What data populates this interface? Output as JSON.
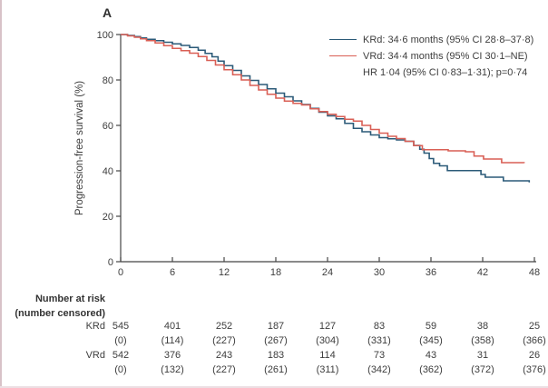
{
  "panel_label": "A",
  "colors": {
    "krd_blue": "#2b5a78",
    "vrd_red": "#d95f55",
    "axis": "#454545",
    "text": "#3d3d3d",
    "edge_left": "#d8c2c8",
    "edge_bottom": "#ecdfe3"
  },
  "chart_data": {
    "type": "line",
    "subtype": "kaplan-meier-step",
    "title": "",
    "xlabel": "",
    "ylabel": "Progression-free survival (%)",
    "xlim": [
      0,
      48
    ],
    "ylim": [
      0,
      100
    ],
    "xticks": [
      0,
      6,
      12,
      18,
      24,
      30,
      36,
      42,
      48
    ],
    "yticks": [
      0,
      20,
      40,
      60,
      80,
      100
    ],
    "grid": false,
    "legend_position": "top-right",
    "legend": [
      {
        "series": "KRd",
        "label": "KRd: 34·6 months (95% CI 28·8–37·8)"
      },
      {
        "series": "VRd",
        "label": "VRd: 34·4 months (95% CI 30·1–NE)"
      }
    ],
    "annotation": "HR 1·04 (95% CI 0·83–1·31); p=0·74",
    "series": [
      {
        "name": "KRd",
        "color": "#2b5a78",
        "points": [
          [
            0,
            100
          ],
          [
            0.8,
            99.6
          ],
          [
            1.6,
            99.1
          ],
          [
            2.3,
            98.5
          ],
          [
            3,
            97.9
          ],
          [
            4,
            97.3
          ],
          [
            5,
            96.6
          ],
          [
            6,
            95.9
          ],
          [
            7,
            95.2
          ],
          [
            8,
            94.3
          ],
          [
            9,
            93.1
          ],
          [
            9.8,
            91.7
          ],
          [
            10.6,
            90.2
          ],
          [
            11.3,
            88.3
          ],
          [
            12,
            86.3
          ],
          [
            13,
            84.2
          ],
          [
            14,
            81.8
          ],
          [
            15,
            79.8
          ],
          [
            16,
            78
          ],
          [
            17,
            76.1
          ],
          [
            18,
            74.2
          ],
          [
            19,
            72.6
          ],
          [
            20,
            70.8
          ],
          [
            21,
            69.2
          ],
          [
            22,
            67.5
          ],
          [
            23,
            65.8
          ],
          [
            24,
            64.2
          ],
          [
            25,
            62.9
          ],
          [
            26,
            60.9
          ],
          [
            27,
            58.7
          ],
          [
            28,
            57.2
          ],
          [
            29,
            55.8
          ],
          [
            30,
            54.6
          ],
          [
            31,
            54.1
          ],
          [
            32,
            53.6
          ],
          [
            33,
            53
          ],
          [
            34,
            51.2
          ],
          [
            34.7,
            49.5
          ],
          [
            35.2,
            47.8
          ],
          [
            35.8,
            45.4
          ],
          [
            36.3,
            43.3
          ],
          [
            37,
            42.2
          ],
          [
            37.9,
            40.1
          ],
          [
            41.8,
            38.4
          ],
          [
            42.3,
            37.2
          ],
          [
            44.4,
            35.6
          ],
          [
            47.4,
            34.9
          ]
        ]
      },
      {
        "name": "VRd",
        "color": "#d95f55",
        "points": [
          [
            0,
            100
          ],
          [
            0.8,
            99.4
          ],
          [
            1.6,
            98.8
          ],
          [
            2.3,
            98.1
          ],
          [
            3,
            97.3
          ],
          [
            4,
            96.3
          ],
          [
            5,
            95.1
          ],
          [
            6,
            93.9
          ],
          [
            7,
            92.9
          ],
          [
            8,
            91.8
          ],
          [
            9,
            90.3
          ],
          [
            10,
            88.6
          ],
          [
            11,
            86.6
          ],
          [
            12,
            84.5
          ],
          [
            13,
            82.3
          ],
          [
            14,
            80
          ],
          [
            15,
            77.6
          ],
          [
            16,
            75.6
          ],
          [
            17,
            73.7
          ],
          [
            18,
            72
          ],
          [
            19,
            70.7
          ],
          [
            20,
            69.7
          ],
          [
            21,
            69
          ],
          [
            22,
            67.3
          ],
          [
            23,
            66.1
          ],
          [
            24,
            64.9
          ],
          [
            25,
            63.9
          ],
          [
            26,
            62.7
          ],
          [
            27,
            61.9
          ],
          [
            28,
            60
          ],
          [
            29,
            58.2
          ],
          [
            30,
            56.6
          ],
          [
            31,
            55.2
          ],
          [
            32,
            54.2
          ],
          [
            33,
            53
          ],
          [
            34,
            51.1
          ],
          [
            35,
            49.3
          ],
          [
            38,
            48.8
          ],
          [
            40,
            48.4
          ],
          [
            41,
            46.5
          ],
          [
            42.1,
            45.2
          ],
          [
            44.2,
            43.6
          ],
          [
            46.8,
            43.4
          ]
        ]
      }
    ]
  },
  "risk_table": {
    "header_line1": "Number at risk",
    "header_line2": "(number censored)",
    "timepoints": [
      0,
      6,
      12,
      18,
      24,
      30,
      36,
      42,
      48
    ],
    "rows": [
      {
        "label": "KRd",
        "at_risk": [
          "545",
          "401",
          "252",
          "187",
          "127",
          "83",
          "59",
          "38",
          "25"
        ],
        "censored": [
          "(0)",
          "(114)",
          "(227)",
          "(267)",
          "(304)",
          "(331)",
          "(345)",
          "(358)",
          "(366)"
        ]
      },
      {
        "label": "VRd",
        "at_risk": [
          "542",
          "376",
          "243",
          "183",
          "114",
          "73",
          "43",
          "31",
          "26"
        ],
        "censored": [
          "(0)",
          "(132)",
          "(227)",
          "(261)",
          "(311)",
          "(342)",
          "(362)",
          "(372)",
          "(376)"
        ]
      }
    ]
  }
}
